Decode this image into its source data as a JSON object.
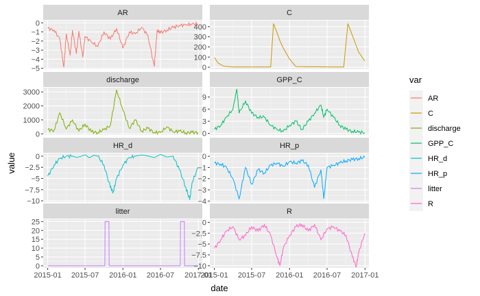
{
  "chart_data": {
    "type": "line",
    "xlabel": "date",
    "ylabel": "value",
    "x_ticks": [
      "2015-01",
      "2015-07",
      "2016-01",
      "2016-07",
      "2017-01"
    ],
    "legend": {
      "title": "var",
      "position": "right",
      "entries": [
        {
          "name": "AR",
          "color": "#F8766D"
        },
        {
          "name": "C",
          "color": "#CD9600"
        },
        {
          "name": "discharge",
          "color": "#7CAE00"
        },
        {
          "name": "GPP_C",
          "color": "#00BE67"
        },
        {
          "name": "HR_d",
          "color": "#00BFC4"
        },
        {
          "name": "HR_p",
          "color": "#00A9FF"
        },
        {
          "name": "litter",
          "color": "#C77CFF"
        },
        {
          "name": "R",
          "color": "#FF61CC"
        }
      ]
    },
    "facets": [
      {
        "title": "AR",
        "color": "#F8766D",
        "yticks": [
          0,
          -1,
          -2,
          -3,
          -4,
          -5
        ],
        "ylim": [
          -5.1,
          0.25
        ],
        "x": [
          "2015-01-01",
          "2015-02-01",
          "2015-03-01",
          "2015-03-20",
          "2015-04-01",
          "2015-04-20",
          "2015-05-01",
          "2015-05-20",
          "2015-06-01",
          "2015-06-20",
          "2015-07-01",
          "2015-08-01",
          "2015-09-01",
          "2015-10-01",
          "2015-11-01",
          "2015-12-01",
          "2016-01-01",
          "2016-02-01",
          "2016-03-01",
          "2016-04-01",
          "2016-05-01",
          "2016-06-01",
          "2016-06-15",
          "2016-07-01",
          "2016-08-01",
          "2016-09-01",
          "2016-10-01",
          "2016-11-01",
          "2016-12-01",
          "2016-12-31"
        ],
        "y": [
          -0.6,
          -0.8,
          -1.8,
          -4.9,
          -1.2,
          -3.6,
          -0.8,
          -3.4,
          -0.9,
          -3.8,
          -1.5,
          -2.1,
          -2.6,
          -1.0,
          -1.8,
          -0.6,
          -2.8,
          -1.0,
          -1.2,
          -0.5,
          -1.4,
          -4.8,
          -0.8,
          -1.1,
          -0.8,
          -0.5,
          -0.3,
          -0.2,
          -0.15,
          -0.1
        ]
      },
      {
        "title": "C",
        "color": "#CD9600",
        "yticks": [
          0,
          100,
          200,
          300,
          400
        ],
        "ylim": [
          -20,
          460
        ],
        "x": [
          "2015-01-01",
          "2015-01-20",
          "2015-02-15",
          "2015-04-01",
          "2015-10-01",
          "2015-10-15",
          "2015-11-01",
          "2015-11-15",
          "2015-12-01",
          "2016-01-01",
          "2016-02-01",
          "2016-09-01",
          "2016-09-20",
          "2016-10-10",
          "2016-11-01",
          "2016-12-01",
          "2016-12-31"
        ],
        "y": [
          95,
          40,
          10,
          2,
          2,
          430,
          340,
          260,
          190,
          80,
          5,
          2,
          2,
          430,
          310,
          150,
          60
        ]
      },
      {
        "title": "discharge",
        "color": "#7CAE00",
        "yticks": [
          0,
          1000,
          2000,
          3000
        ],
        "ylim": [
          -80,
          3300
        ],
        "x": [
          "2015-01-01",
          "2015-02-01",
          "2015-03-01",
          "2015-04-01",
          "2015-05-01",
          "2015-06-01",
          "2015-07-01",
          "2015-08-01",
          "2015-09-01",
          "2015-10-01",
          "2015-11-01",
          "2015-12-01",
          "2016-01-01",
          "2016-02-01",
          "2016-03-01",
          "2016-04-01",
          "2016-05-01",
          "2016-06-01",
          "2016-07-01",
          "2016-08-01",
          "2016-09-01",
          "2016-10-01",
          "2016-11-01",
          "2016-12-01",
          "2016-12-31"
        ],
        "y": [
          300,
          250,
          1500,
          350,
          1000,
          200,
          700,
          150,
          100,
          300,
          600,
          3150,
          1700,
          400,
          1000,
          200,
          400,
          100,
          100,
          500,
          150,
          200,
          80,
          100,
          100
        ]
      },
      {
        "title": "GPP_C",
        "color": "#00BE67",
        "yticks": [
          0,
          3,
          6,
          9
        ],
        "ylim": [
          -0.4,
          11.3
        ],
        "x": [
          "2015-01-01",
          "2015-02-01",
          "2015-03-01",
          "2015-04-01",
          "2015-04-20",
          "2015-05-01",
          "2015-06-01",
          "2015-07-01",
          "2015-08-01",
          "2015-09-01",
          "2015-10-01",
          "2015-11-01",
          "2015-12-01",
          "2016-01-01",
          "2016-02-01",
          "2016-03-01",
          "2016-04-01",
          "2016-05-01",
          "2016-06-01",
          "2016-06-15",
          "2016-07-01",
          "2016-08-01",
          "2016-09-01",
          "2016-10-01",
          "2016-11-01",
          "2016-12-01",
          "2016-12-31"
        ],
        "y": [
          1,
          2,
          4,
          6,
          11,
          5,
          8,
          5,
          4,
          4,
          2,
          1,
          0.5,
          2,
          3,
          1,
          3,
          5,
          7,
          4,
          6,
          4,
          2,
          1,
          0.5,
          0.3,
          0.2
        ]
      },
      {
        "title": "HR_d",
        "color": "#00BFC4",
        "yticks": [
          0.0,
          -2.5,
          -5.0,
          -7.5,
          -10.0
        ],
        "ylim": [
          -10.3,
          0.6
        ],
        "x": [
          "2015-01-01",
          "2015-02-01",
          "2015-03-01",
          "2015-04-01",
          "2015-05-01",
          "2015-09-01",
          "2015-10-01",
          "2015-11-01",
          "2015-11-15",
          "2015-12-01",
          "2016-01-01",
          "2016-02-01",
          "2016-03-01",
          "2016-09-01",
          "2016-10-01",
          "2016-11-01",
          "2016-11-20",
          "2016-12-01",
          "2016-12-31"
        ],
        "y": [
          -4.5,
          -2.0,
          -0.5,
          0,
          0,
          0,
          -2.0,
          -7.0,
          -8.0,
          -5.0,
          -2.0,
          -0.3,
          0,
          0,
          -3.0,
          -7.0,
          -9.8,
          -6.0,
          -2.5
        ]
      },
      {
        "title": "HR_p",
        "color": "#00A9FF",
        "yticks": [
          0,
          -1,
          -2,
          -3,
          -4
        ],
        "ylim": [
          -4.1,
          0.25
        ],
        "x": [
          "2015-01-01",
          "2015-02-01",
          "2015-03-01",
          "2015-04-01",
          "2015-05-01",
          "2015-06-01",
          "2015-07-01",
          "2015-08-01",
          "2015-09-01",
          "2015-10-01",
          "2015-11-01",
          "2015-12-01",
          "2016-01-01",
          "2016-02-01",
          "2016-03-01",
          "2016-04-01",
          "2016-05-01",
          "2016-06-01",
          "2016-06-15",
          "2016-07-01",
          "2016-08-01",
          "2016-09-01",
          "2016-10-01",
          "2016-11-01",
          "2016-12-01",
          "2016-12-31"
        ],
        "y": [
          -0.6,
          -0.7,
          -1.0,
          -2.0,
          -3.8,
          -1.0,
          -2.5,
          -1.2,
          -1.5,
          -0.8,
          -0.6,
          -0.9,
          -0.5,
          -0.6,
          -0.4,
          -0.8,
          -2.8,
          -1.2,
          -3.8,
          -1.0,
          -0.8,
          -0.6,
          -0.4,
          -0.3,
          -0.2,
          -0.1
        ]
      },
      {
        "title": "litter",
        "color": "#C77CFF",
        "yticks": [
          0,
          5,
          10,
          15,
          20,
          25
        ],
        "ylim": [
          -1.2,
          26.3
        ],
        "x": [
          "2015-01-01",
          "2015-10-05",
          "2015-10-06",
          "2015-10-25",
          "2015-10-26",
          "2016-10-05",
          "2016-10-06",
          "2016-10-25",
          "2016-10-26",
          "2016-12-31"
        ],
        "y": [
          0,
          0,
          25,
          25,
          0,
          0,
          25,
          25,
          0,
          0
        ]
      },
      {
        "title": "R",
        "color": "#FF61CC",
        "yticks": [
          0.0,
          -2.5,
          -5.0,
          -7.5,
          -10.0
        ],
        "ylim": [
          -10.5,
          0.7
        ],
        "x": [
          "2015-01-01",
          "2015-02-01",
          "2015-03-01",
          "2015-04-01",
          "2015-05-01",
          "2015-06-01",
          "2015-07-01",
          "2015-08-01",
          "2015-09-01",
          "2015-10-01",
          "2015-11-01",
          "2015-11-15",
          "2015-12-01",
          "2016-01-01",
          "2016-02-01",
          "2016-03-01",
          "2016-04-01",
          "2016-05-01",
          "2016-06-01",
          "2016-07-01",
          "2016-08-01",
          "2016-09-01",
          "2016-10-01",
          "2016-11-01",
          "2016-11-20",
          "2016-12-01",
          "2016-12-31"
        ],
        "y": [
          -6,
          -4,
          -2,
          -1,
          -4,
          -3,
          -1,
          -2,
          -0.5,
          -3,
          -8,
          -10,
          -6,
          -3,
          -1,
          -0.5,
          -2,
          -0.5,
          -4,
          -1.5,
          -1,
          -2,
          -3,
          -8,
          -10.2,
          -7,
          -2.5
        ]
      }
    ]
  }
}
